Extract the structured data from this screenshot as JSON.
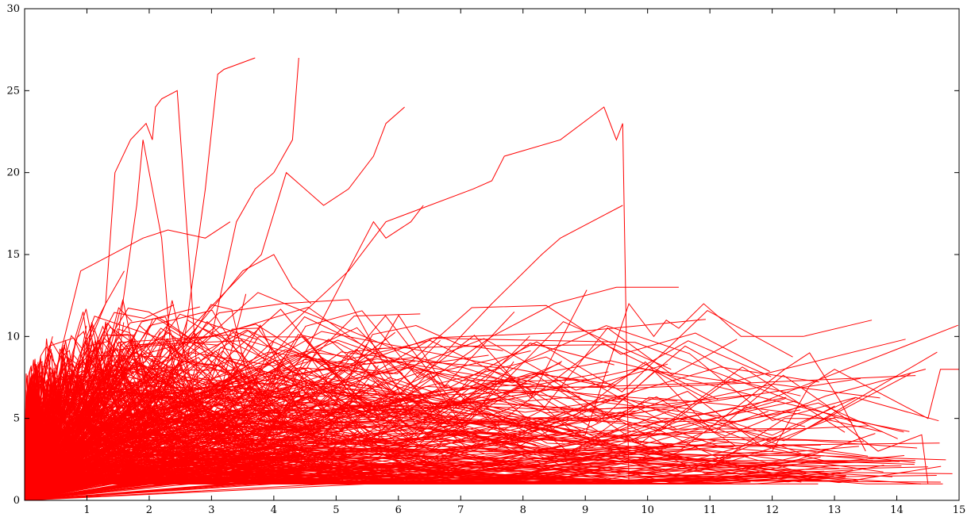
{
  "chart_data": {
    "type": "line",
    "title": "",
    "xlabel": "",
    "ylabel": "",
    "xlim": [
      0,
      15
    ],
    "ylim": [
      0,
      30
    ],
    "grid": false,
    "legend": "none",
    "line_color": "#ff0000",
    "x_ticks": [
      "1",
      "2",
      "3",
      "4",
      "5",
      "6",
      "7",
      "8",
      "9",
      "10",
      "11",
      "12",
      "13",
      "14",
      "15"
    ],
    "y_ticks": [
      "0",
      "5",
      "10",
      "15",
      "20",
      "25",
      "30"
    ],
    "series": [
      {
        "x": [
          0,
          0.9,
          1.9,
          2.3,
          2.9,
          3.3
        ],
        "y": [
          0,
          14,
          16,
          16.5,
          16,
          17
        ]
      },
      {
        "x": [
          0,
          1.3,
          1.45,
          1.7,
          1.95,
          2.05,
          2.1,
          2.2,
          2.45,
          2.8
        ],
        "y": [
          0,
          12,
          20,
          22,
          23,
          22,
          24,
          24.5,
          25,
          6
        ]
      },
      {
        "x": [
          0,
          1.5,
          1.8,
          1.9,
          2.2,
          2.5
        ],
        "y": [
          0,
          10,
          18,
          22,
          16,
          2
        ]
      },
      {
        "x": [
          0,
          2.5,
          2.9,
          3.1,
          3.2,
          3.7
        ],
        "y": [
          0,
          8,
          19,
          26,
          26.3,
          27
        ]
      },
      {
        "x": [
          0,
          3.0,
          3.4,
          3.7,
          4.0,
          4.3,
          4.4
        ],
        "y": [
          0,
          10,
          17,
          19,
          20,
          22,
          27
        ]
      },
      {
        "x": [
          0,
          3.8,
          4.2,
          4.8,
          5.2,
          5.6,
          5.8,
          6.1
        ],
        "y": [
          0,
          15,
          20,
          18,
          19,
          21,
          23,
          24
        ]
      },
      {
        "x": [
          0,
          4.5,
          5.6,
          5.8,
          6.2,
          6.4
        ],
        "y": [
          0,
          9,
          17,
          16,
          17,
          18
        ]
      },
      {
        "x": [
          0,
          3.5,
          5.2,
          5.8,
          7.2,
          7.5,
          7.7,
          8.6,
          9.3,
          9.5,
          9.6,
          9.7
        ],
        "y": [
          0,
          8,
          14,
          17,
          19,
          19.5,
          21,
          22,
          24,
          22,
          23,
          1
        ]
      },
      {
        "x": [
          0,
          6.5,
          7.5,
          8.3,
          8.6,
          9.6
        ],
        "y": [
          0,
          8,
          12,
          15,
          16,
          18
        ]
      },
      {
        "x": [
          0,
          6.0,
          7.5,
          8.5,
          9.5,
          10.5
        ],
        "y": [
          0,
          6,
          10,
          12,
          13,
          13
        ]
      },
      {
        "x": [
          0,
          9.0,
          9.7,
          10.1,
          10.3,
          10.5,
          10.9,
          11.5,
          12.5,
          13.6
        ],
        "y": [
          0,
          4,
          12,
          10,
          11,
          10.5,
          12,
          10,
          10,
          11
        ]
      },
      {
        "x": [
          0,
          10.5,
          11.2,
          12.2,
          12.6,
          13.1,
          13.5
        ],
        "y": [
          0,
          3,
          5,
          8,
          9,
          6,
          3
        ]
      },
      {
        "x": [
          0,
          12.0,
          12.6,
          13.0,
          14.5,
          14.7,
          15.0
        ],
        "y": [
          0,
          3,
          7,
          8,
          5,
          8,
          8
        ]
      },
      {
        "x": [
          0,
          11.0,
          12.2,
          13.0,
          13.7,
          14.4,
          14.5
        ],
        "y": [
          0,
          2,
          5,
          5,
          3,
          4,
          1
        ]
      },
      {
        "x": [
          0,
          0.15,
          0.3,
          0.45
        ],
        "y": [
          0,
          6,
          8,
          10
        ]
      },
      {
        "x": [
          0,
          0.5,
          0.9,
          1.3,
          1.6
        ],
        "y": [
          0,
          5,
          9,
          12,
          14
        ]
      },
      {
        "x": [
          0,
          2.0,
          3.5,
          4.0,
          4.3,
          4.6
        ],
        "y": [
          0,
          7,
          14,
          15,
          13,
          12
        ]
      }
    ],
    "bundle": {
      "count": 800,
      "xmax_range": [
        0.2,
        15
      ],
      "y_cap": 14,
      "y_floor": 1
    }
  }
}
